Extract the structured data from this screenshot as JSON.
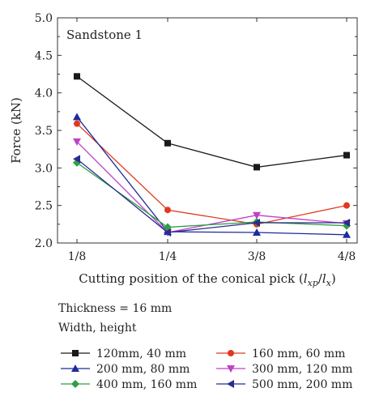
{
  "chart_data": {
    "type": "line",
    "title": "Sandstone 1",
    "xlabel_parts": [
      "Cutting position of the conical pick (",
      "l",
      "xp",
      "/",
      "l",
      "x",
      ")"
    ],
    "ylabel": "Force (kN)",
    "categories": [
      "1/8",
      "1/4",
      "3/8",
      "4/8"
    ],
    "ylim": [
      2.0,
      5.0
    ],
    "yticks": [
      "2.0",
      "2.5",
      "3.0",
      "3.5",
      "4.0",
      "4.5",
      "5.0"
    ],
    "grid": false,
    "legend_placement": "bottom",
    "series": [
      {
        "name": "120mm, 40 mm",
        "color": "#1a1a1a",
        "marker": "square",
        "values": [
          4.22,
          3.33,
          3.01,
          3.17
        ]
      },
      {
        "name": "160 mm, 60 mm",
        "color": "#e03a1e",
        "marker": "circle",
        "values": [
          3.59,
          2.44,
          2.25,
          2.5
        ]
      },
      {
        "name": "200 mm, 80 mm",
        "color": "#1f2a9c",
        "marker": "triangle-up",
        "values": [
          3.68,
          2.15,
          2.14,
          2.11
        ]
      },
      {
        "name": "300 mm, 120 mm",
        "color": "#c040c8",
        "marker": "triangle-down",
        "values": [
          3.35,
          2.14,
          2.37,
          2.26
        ]
      },
      {
        "name": "400 mm, 160 mm",
        "color": "#2ea043",
        "marker": "diamond",
        "values": [
          3.07,
          2.21,
          2.28,
          2.23
        ]
      },
      {
        "name": "500 mm, 200 mm",
        "color": "#2b2b8f",
        "marker": "triangle-left",
        "values": [
          3.12,
          2.14,
          2.27,
          2.27
        ]
      }
    ]
  },
  "info": {
    "thickness": "Thickness = 16 mm",
    "dims": "Width, height"
  }
}
